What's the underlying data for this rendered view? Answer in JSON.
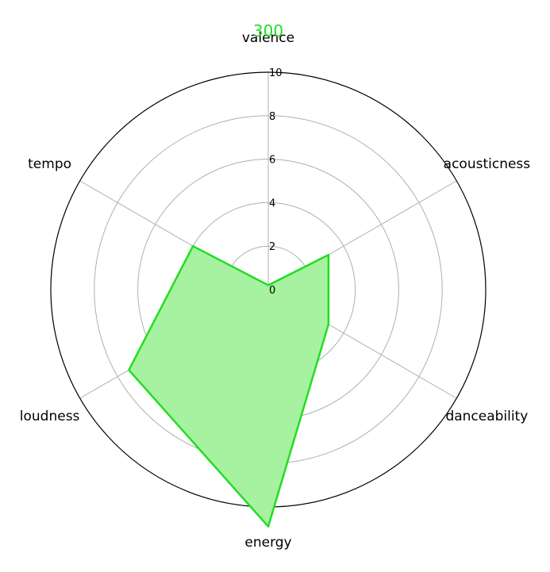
{
  "chart_data": {
    "type": "radar",
    "title": "300",
    "categories": [
      "valence",
      "acousticness",
      "danceability",
      "energy",
      "loudness",
      "tempo"
    ],
    "series": [
      {
        "values": [
          0.2,
          3.2,
          3.2,
          10.9,
          7.4,
          4.0
        ]
      }
    ],
    "rlim": [
      0,
      10
    ],
    "rticks": [
      "0",
      "2",
      "4",
      "6",
      "8",
      "10"
    ],
    "grid": true,
    "colors": {
      "line": "#22dd22",
      "fill": "#a6f2a0",
      "grid": "#b0b0b0",
      "frame": "#000000"
    }
  }
}
